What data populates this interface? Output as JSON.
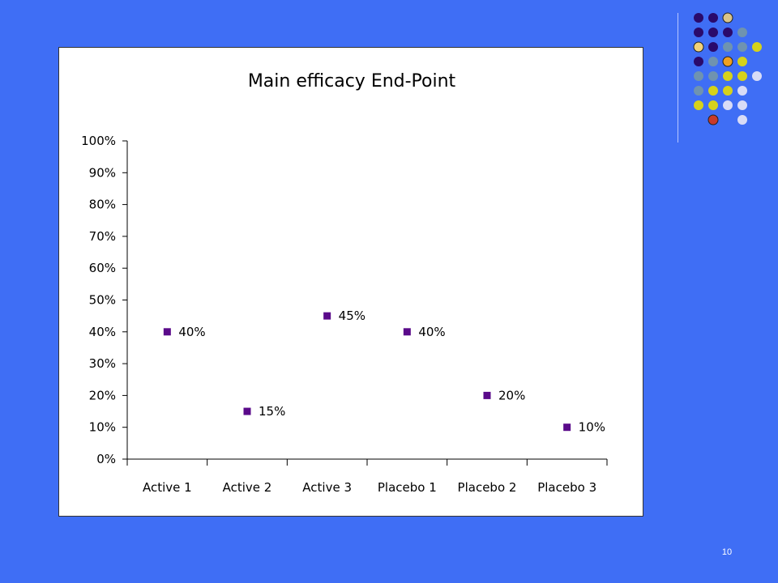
{
  "slide": {
    "page_number": "10",
    "background_color": "#3f6ef5"
  },
  "decoration": {
    "dot_colors": [
      "#2a0a6b",
      "#6f93b0",
      "#d6d21a",
      "#d8dcf6"
    ],
    "icons": [
      "saturn-icon",
      "lion-icon",
      "sun-icon",
      "mars-icon"
    ]
  },
  "chart_data": {
    "type": "scatter",
    "title": "Main efficacy End-Point",
    "xlabel": "",
    "ylabel": "",
    "categories": [
      "Active 1",
      "Active 2",
      "Active 3",
      "Placebo 1",
      "Placebo 2",
      "Placebo 3"
    ],
    "values": [
      0.4,
      0.15,
      0.45,
      0.4,
      0.2,
      0.1
    ],
    "data_labels": [
      "40%",
      "15%",
      "45%",
      "40%",
      "20%",
      "10%"
    ],
    "ylim": [
      0,
      1
    ],
    "y_ticks": [
      "0%",
      "10%",
      "20%",
      "30%",
      "40%",
      "50%",
      "60%",
      "70%",
      "80%",
      "90%",
      "100%"
    ],
    "marker_color": "#5a0a8a",
    "grid": false,
    "legend": "none"
  }
}
